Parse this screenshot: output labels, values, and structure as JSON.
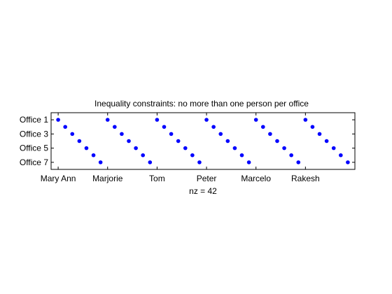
{
  "chart_data": {
    "type": "scatter",
    "title": "Inequality constraints: no more than one person per office",
    "xlabel": "nz = 42",
    "ylabel": "",
    "x_tick_labels": [
      "Mary Ann",
      "Marjorie",
      "Tom",
      "Peter",
      "Marcelo",
      "Rakesh"
    ],
    "x_tick_values": [
      1,
      8,
      15,
      22,
      29,
      36
    ],
    "y_tick_labels": [
      "Office 1",
      "Office 3",
      "Office 5",
      "Office 7"
    ],
    "y_tick_values": [
      1,
      3,
      5,
      7
    ],
    "xlim": [
      0,
      43
    ],
    "ylim": [
      0,
      8
    ],
    "y_reversed": true,
    "grid": false,
    "marker_color": "#0000ff",
    "points": [
      [
        1,
        1
      ],
      [
        2,
        2
      ],
      [
        3,
        3
      ],
      [
        4,
        4
      ],
      [
        5,
        5
      ],
      [
        6,
        6
      ],
      [
        7,
        7
      ],
      [
        8,
        1
      ],
      [
        9,
        2
      ],
      [
        10,
        3
      ],
      [
        11,
        4
      ],
      [
        12,
        5
      ],
      [
        13,
        6
      ],
      [
        14,
        7
      ],
      [
        15,
        1
      ],
      [
        16,
        2
      ],
      [
        17,
        3
      ],
      [
        18,
        4
      ],
      [
        19,
        5
      ],
      [
        20,
        6
      ],
      [
        21,
        7
      ],
      [
        22,
        1
      ],
      [
        23,
        2
      ],
      [
        24,
        3
      ],
      [
        25,
        4
      ],
      [
        26,
        5
      ],
      [
        27,
        6
      ],
      [
        28,
        7
      ],
      [
        29,
        1
      ],
      [
        30,
        2
      ],
      [
        31,
        3
      ],
      [
        32,
        4
      ],
      [
        33,
        5
      ],
      [
        34,
        6
      ],
      [
        35,
        7
      ],
      [
        36,
        1
      ],
      [
        37,
        2
      ],
      [
        38,
        3
      ],
      [
        39,
        4
      ],
      [
        40,
        5
      ],
      [
        41,
        6
      ],
      [
        42,
        7
      ]
    ]
  }
}
